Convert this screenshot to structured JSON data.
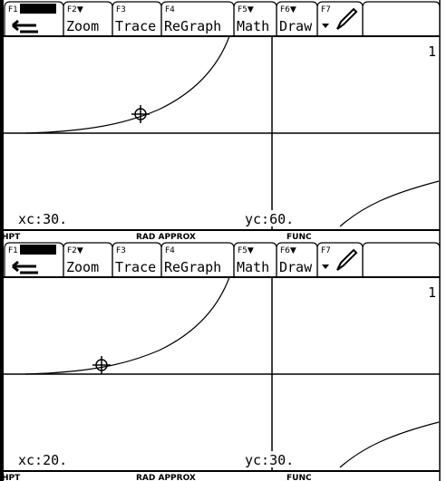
{
  "screens": [
    {
      "toolbar": [
        {
          "key": "F1"
        },
        {
          "key": "F2▼",
          "label": "Zoom"
        },
        {
          "key": "F3",
          "label": "Trace"
        },
        {
          "key": "F4",
          "label": "ReGraph"
        },
        {
          "key": "F5▼",
          "label": "Math"
        },
        {
          "key": "F6▼",
          "label": "Draw"
        },
        {
          "key": "F7"
        }
      ],
      "graph_number": "1",
      "xc": "xc:30.",
      "yc": "yc:60.",
      "status": [
        "HPT",
        "RAD APPROX",
        "FUNC"
      ]
    },
    {
      "toolbar": [
        {
          "key": "F1"
        },
        {
          "key": "F2▼",
          "label": "Zoom"
        },
        {
          "key": "F3",
          "label": "Trace"
        },
        {
          "key": "F4",
          "label": "ReGraph"
        },
        {
          "key": "F5▼",
          "label": "Math"
        },
        {
          "key": "F6▼",
          "label": "Draw"
        },
        {
          "key": "F7"
        }
      ],
      "graph_number": "1",
      "xc": "xc:20.",
      "yc": "yc:30.",
      "status": [
        "HPT",
        "RAD APPROX",
        "FUNC"
      ]
    }
  ]
}
